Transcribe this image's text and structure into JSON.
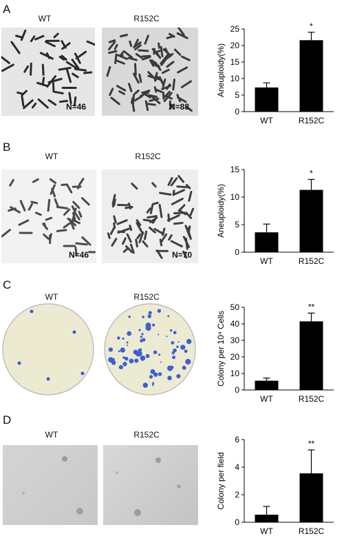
{
  "panels": [
    {
      "letter": "A",
      "image_labels": [
        "WT",
        "R152C"
      ],
      "image_counts": [
        "N=46",
        "N=88"
      ]
    },
    {
      "letter": "B",
      "image_labels": [
        "WT",
        "R152C"
      ],
      "image_counts": [
        "N=46",
        "N=70"
      ]
    },
    {
      "letter": "C",
      "image_labels": [
        "WT",
        "R152C"
      ]
    },
    {
      "letter": "D",
      "image_labels": [
        "WT",
        "R152C"
      ]
    }
  ],
  "chart_data": [
    {
      "type": "bar",
      "categories": [
        "WT",
        "R152C"
      ],
      "values": [
        7.3,
        21.6
      ],
      "errors": [
        1.4,
        2.4
      ],
      "annotations": [
        "",
        "*"
      ],
      "ylabel": "Aneuploidy(%)",
      "ylim": [
        0,
        25
      ],
      "yticks": [
        0,
        5,
        10,
        15,
        20,
        25
      ],
      "bar_color": "#000000"
    },
    {
      "type": "bar",
      "categories": [
        "WT",
        "R152C"
      ],
      "values": [
        3.6,
        11.3
      ],
      "errors": [
        1.5,
        1.9
      ],
      "annotations": [
        "",
        "*"
      ],
      "ylabel": "Aneuploidy(%)",
      "ylim": [
        0,
        15
      ],
      "yticks": [
        0,
        5,
        10,
        15
      ],
      "bar_color": "#000000"
    },
    {
      "type": "bar",
      "categories": [
        "WT",
        "R152C"
      ],
      "values": [
        5.6,
        41.5
      ],
      "errors": [
        1.6,
        5.0
      ],
      "annotations": [
        "",
        "**"
      ],
      "ylabel": "Colony per 10⁴ Cells",
      "ylim": [
        0,
        50
      ],
      "yticks": [
        0,
        10,
        20,
        30,
        40,
        50
      ],
      "bar_color": "#000000"
    },
    {
      "type": "bar",
      "categories": [
        "WT",
        "R152C"
      ],
      "values": [
        0.55,
        3.55
      ],
      "errors": [
        0.6,
        1.7
      ],
      "annotations": [
        "",
        "**"
      ],
      "ylabel": "Colony per field",
      "ylim": [
        0,
        6
      ],
      "yticks": [
        0,
        2,
        4,
        6
      ],
      "bar_color": "#000000"
    }
  ]
}
